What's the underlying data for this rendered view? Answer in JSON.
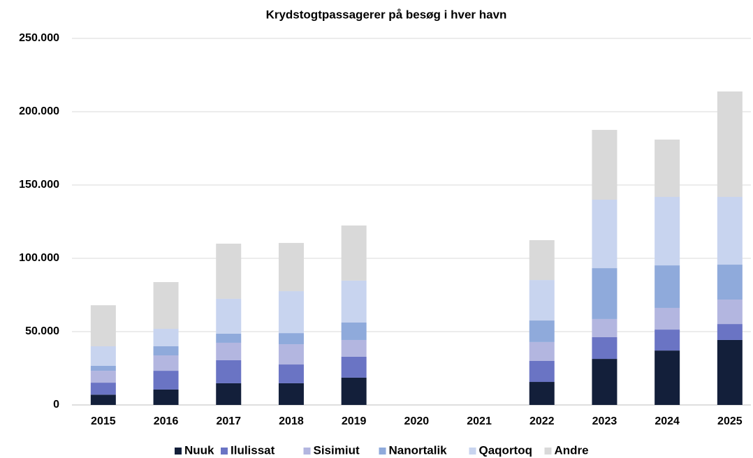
{
  "chart_data": {
    "type": "stacked_bar",
    "title": "Krydstogtpassagerer på besøg i hver havn",
    "categories": [
      "2015",
      "2016",
      "2017",
      "2018",
      "2019",
      "2020",
      "2021",
      "2022",
      "2023",
      "2024",
      "2025"
    ],
    "series": [
      {
        "name": "Nuuk",
        "color": "#131f3a",
        "values": [
          7000,
          10500,
          14800,
          14800,
          18600,
          null,
          null,
          15700,
          31400,
          37100,
          44300
        ]
      },
      {
        "name": "Ilulissat",
        "color": "#6a74c4",
        "values": [
          8200,
          12800,
          15700,
          12800,
          14300,
          null,
          null,
          14300,
          14800,
          14300,
          10900
        ]
      },
      {
        "name": "Sisimiut",
        "color": "#b3b6e0",
        "values": [
          8100,
          10500,
          11900,
          13800,
          11400,
          null,
          null,
          12900,
          12400,
          14800,
          16700
        ]
      },
      {
        "name": "Nanortalik",
        "color": "#8faadb",
        "values": [
          3400,
          6200,
          6200,
          7600,
          11900,
          null,
          null,
          14700,
          34700,
          29000,
          23800
        ]
      },
      {
        "name": "Qaqortoq",
        "color": "#c8d4ef",
        "values": [
          13300,
          11900,
          23800,
          28600,
          28600,
          null,
          null,
          27600,
          46700,
          46700,
          46200
        ]
      },
      {
        "name": "Andre",
        "color": "#d9d9d9",
        "values": [
          28000,
          31900,
          37600,
          32900,
          37600,
          null,
          null,
          27200,
          47600,
          39100,
          71900
        ]
      }
    ],
    "ylim": [
      0,
      250000
    ],
    "yticks": [
      0,
      {
        "value": 50000,
        "label": "50.000"
      },
      {
        "value": 100000,
        "label": "100.000"
      },
      {
        "value": 150000,
        "label": "150.000"
      },
      {
        "value": 200000,
        "label": "200.000"
      },
      {
        "value": 250000,
        "label": "250.000"
      }
    ],
    "grid": true,
    "legend": "bottom"
  }
}
